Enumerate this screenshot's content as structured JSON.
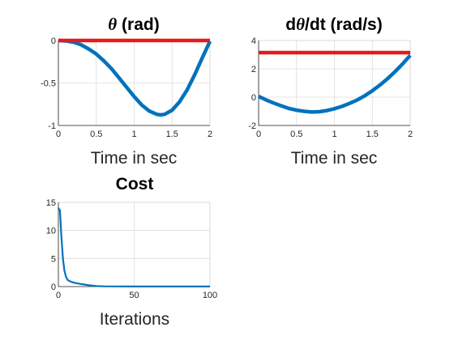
{
  "chart_data": [
    {
      "type": "line",
      "title_prefix": "θ",
      "title_suffix": " (rad)",
      "xlabel": "Time in sec",
      "xlim": [
        0,
        2
      ],
      "ylim": [
        -1,
        0
      ],
      "xticks": [
        0,
        0.5,
        1,
        1.5,
        2
      ],
      "yticks": [
        -1,
        -0.5,
        0
      ],
      "ytick_labels": [
        "-1",
        "-0.5",
        "0"
      ],
      "grid": true,
      "series": [
        {
          "color": "#0072BD",
          "x": [
            0,
            0.1,
            0.2,
            0.3,
            0.4,
            0.5,
            0.6,
            0.7,
            0.8,
            0.9,
            1.0,
            1.1,
            1.2,
            1.3,
            1.35,
            1.4,
            1.5,
            1.6,
            1.7,
            1.8,
            1.9,
            2.0
          ],
          "y": [
            0,
            -0.005,
            -0.02,
            -0.05,
            -0.1,
            -0.16,
            -0.24,
            -0.33,
            -0.44,
            -0.55,
            -0.66,
            -0.76,
            -0.83,
            -0.87,
            -0.875,
            -0.87,
            -0.82,
            -0.72,
            -0.58,
            -0.4,
            -0.2,
            -0.01
          ]
        },
        {
          "color": "#E8191B",
          "x": [
            0,
            2
          ],
          "y": [
            0,
            0
          ]
        }
      ]
    },
    {
      "type": "line",
      "title_prefix": "d",
      "title_mid": "θ",
      "title_suffix": "/dt (rad/s)",
      "xlabel": "Time in sec",
      "xlim": [
        0,
        2
      ],
      "ylim": [
        -2,
        4
      ],
      "xticks": [
        0,
        0.5,
        1,
        1.5,
        2
      ],
      "yticks": [
        -2,
        0,
        2,
        4
      ],
      "ytick_labels": [
        "-2",
        "0",
        "2",
        "4"
      ],
      "grid": true,
      "series": [
        {
          "color": "#0072BD",
          "x": [
            0,
            0.1,
            0.2,
            0.3,
            0.4,
            0.5,
            0.6,
            0.7,
            0.8,
            0.9,
            1.0,
            1.1,
            1.2,
            1.3,
            1.4,
            1.5,
            1.6,
            1.7,
            1.8,
            1.9,
            2.0
          ],
          "y": [
            0.05,
            -0.2,
            -0.42,
            -0.62,
            -0.8,
            -0.92,
            -1.0,
            -1.05,
            -1.03,
            -0.95,
            -0.82,
            -0.65,
            -0.44,
            -0.2,
            0.1,
            0.45,
            0.85,
            1.3,
            1.8,
            2.35,
            2.95
          ]
        },
        {
          "color": "#E8191B",
          "x": [
            0,
            2
          ],
          "y": [
            3.14,
            3.14
          ]
        }
      ]
    },
    {
      "type": "line",
      "title_prefix": "Cost",
      "xlabel": "Iterations",
      "xlim": [
        0,
        100
      ],
      "ylim": [
        0,
        15
      ],
      "xticks": [
        0,
        50,
        100
      ],
      "yticks": [
        0,
        5,
        10,
        15
      ],
      "ytick_labels": [
        "0",
        "5",
        "10",
        "15"
      ],
      "grid": true,
      "series": [
        {
          "color": "#0072BD",
          "x": [
            0,
            1,
            2,
            3,
            4,
            5,
            6,
            8,
            10,
            12,
            15,
            20,
            25,
            30,
            40,
            50,
            60,
            70,
            80,
            90,
            100
          ],
          "y": [
            14,
            13.6,
            9,
            5,
            2.8,
            1.8,
            1.2,
            0.9,
            0.7,
            0.6,
            0.45,
            0.25,
            0.1,
            0.05,
            0.03,
            0.02,
            0.02,
            0.02,
            0.02,
            0.02,
            0.02
          ]
        }
      ]
    }
  ]
}
